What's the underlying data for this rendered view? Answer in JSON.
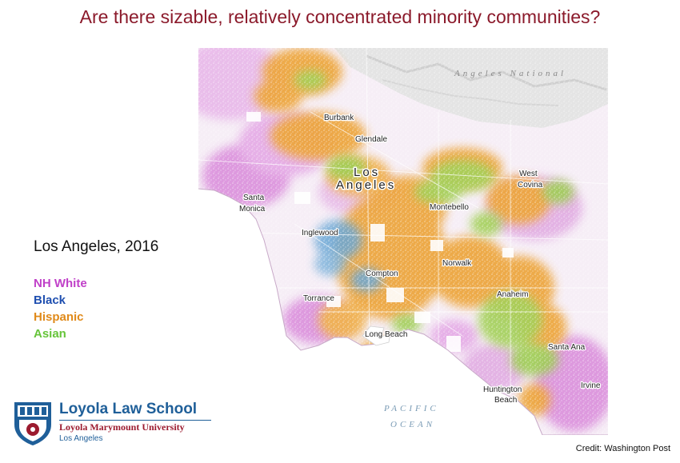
{
  "title": "Are there sizable, relatively concentrated minority communities?",
  "subtitle": "Los Angeles, 2016",
  "legend": [
    {
      "label": "NH White",
      "color": "#c040c8"
    },
    {
      "label": "Black",
      "color": "#1f4fb0"
    },
    {
      "label": "Hispanic",
      "color": "#e08a1a"
    },
    {
      "label": "Asian",
      "color": "#66c43a"
    }
  ],
  "map": {
    "places": {
      "burbank": "Burbank",
      "glendale": "Glendale",
      "los": "Los",
      "angeles": "Angeles",
      "west": "West",
      "covina": "Covina",
      "santa": "Santa",
      "monica": "Monica",
      "montebello": "Montebello",
      "inglewood": "Inglewood",
      "norwalk": "Norwalk",
      "compton": "Compton",
      "anaheim": "Anaheim",
      "torrance": "Torrance",
      "long_beach": "Long Beach",
      "santa_ana": "Santa Ana",
      "huntington": "Huntington",
      "beach": "Beach",
      "irvine": "Irvine"
    },
    "ocean_line1": "PACIFIC",
    "ocean_line2": "OCEAN",
    "forest_label": "Angeles National"
  },
  "logo": {
    "name": "Loyola Law School",
    "university": "Loyola Marymount University",
    "city": "Los Angeles"
  },
  "credit": "Credit: Washington Post"
}
